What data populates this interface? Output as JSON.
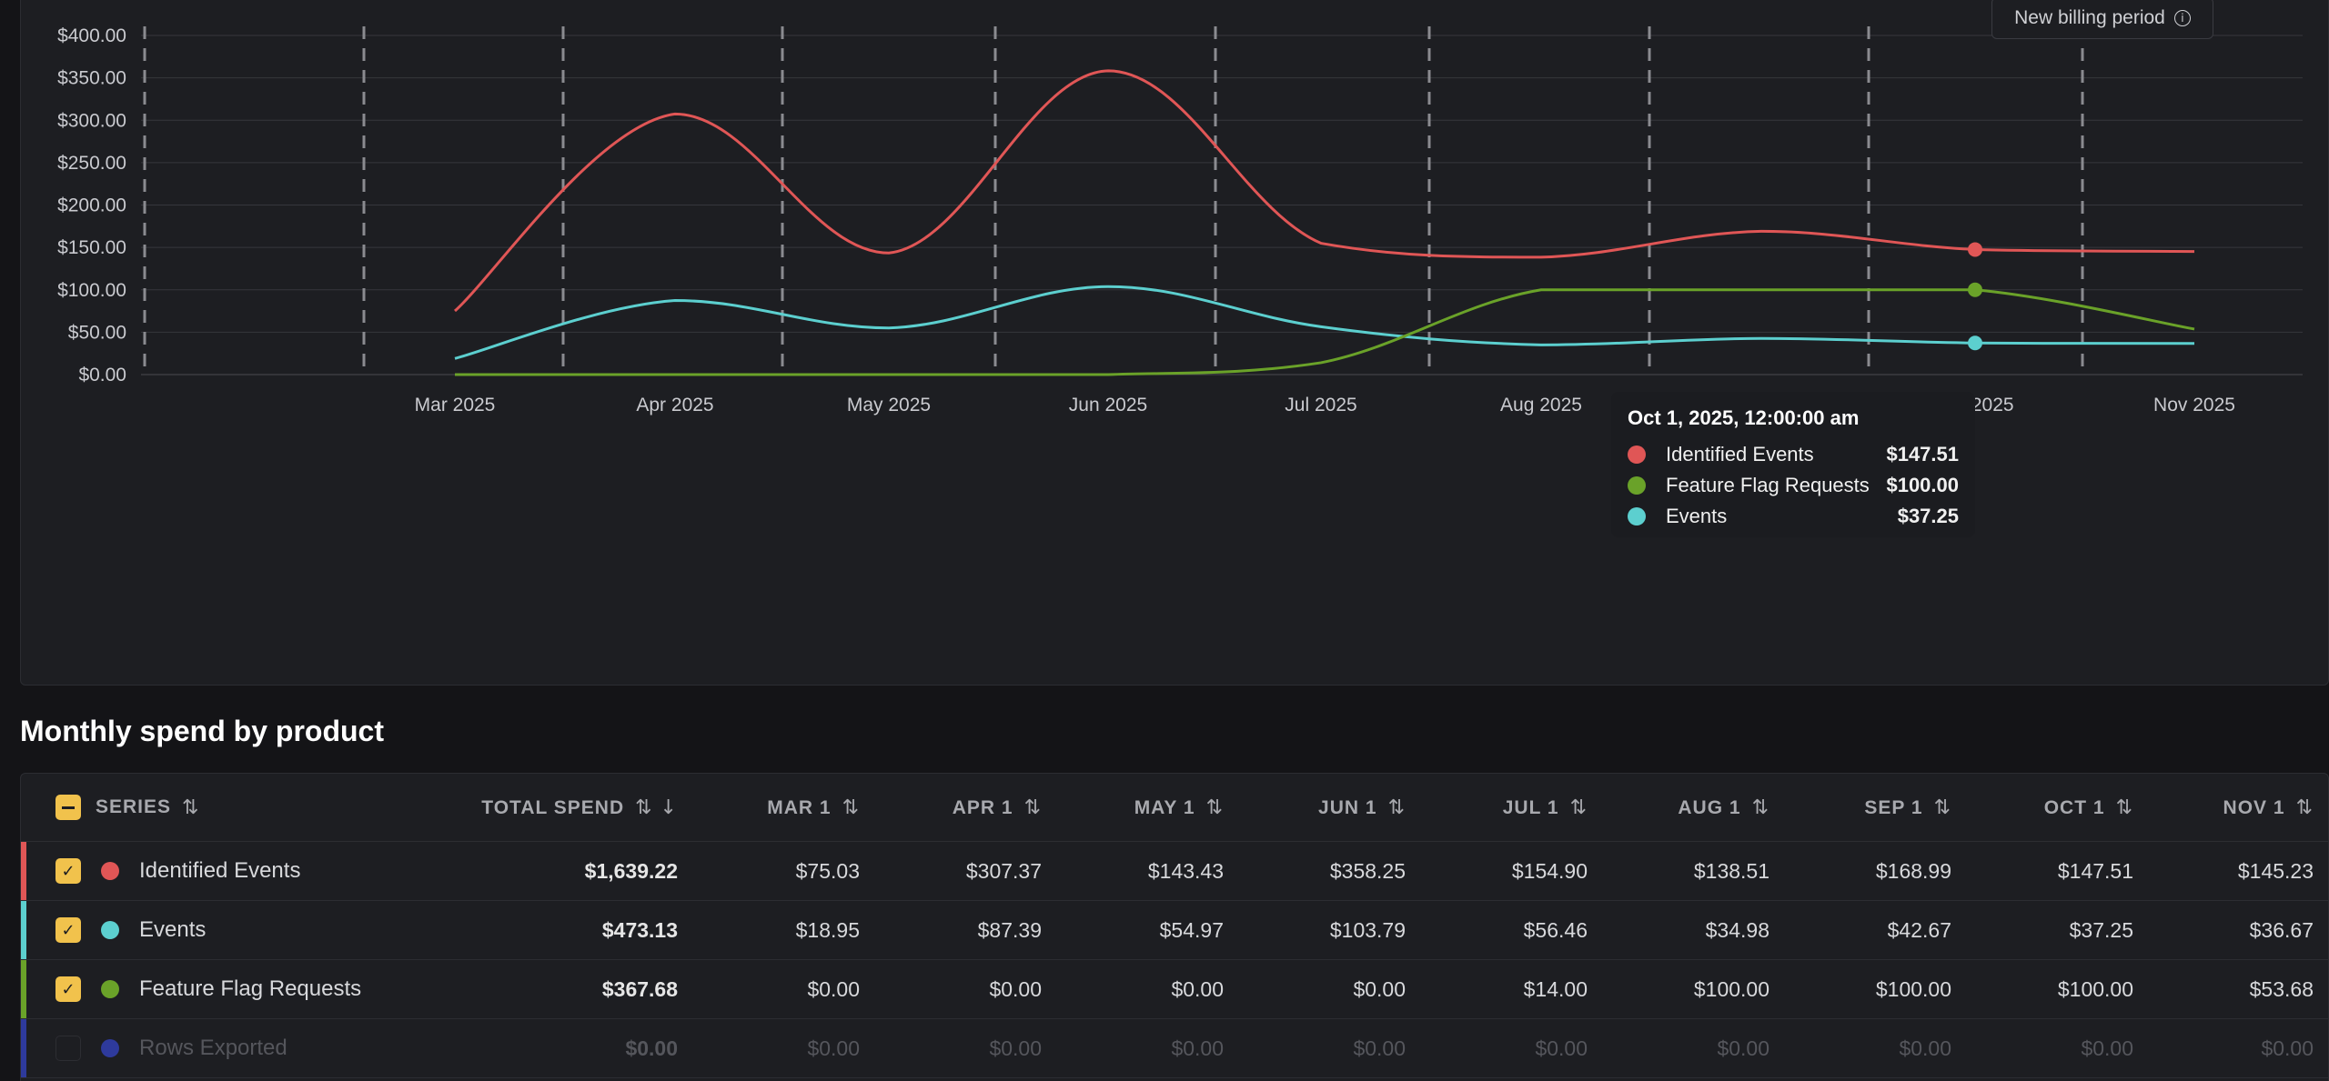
{
  "chart": {
    "badge_label": "New billing period",
    "badge_icon": "info-icon",
    "tooltip": {
      "title": "Oct 1, 2025, 12:00:00 am",
      "rows": [
        {
          "name": "Identified Events",
          "value": "$147.51",
          "color": "#e05656"
        },
        {
          "name": "Feature Flag Requests",
          "value": "$100.00",
          "color": "#6aa229"
        },
        {
          "name": "Events",
          "value": "$37.25",
          "color": "#5ccfcf"
        }
      ]
    }
  },
  "chart_data": {
    "type": "line",
    "title": "",
    "xlabel": "",
    "ylabel": "",
    "ylim": [
      0,
      400
    ],
    "grid": true,
    "x": [
      "Mar 2025",
      "Apr 2025",
      "May 2025",
      "Jun 2025",
      "Jul 2025",
      "Aug 2025",
      "Sep 2025",
      "Oct 2025",
      "Nov 2025"
    ],
    "y_ticks": [
      "$0.00",
      "$50.00",
      "$100.00",
      "$150.00",
      "$200.00",
      "$250.00",
      "$300.00",
      "$350.00",
      "$400.00"
    ],
    "series": [
      {
        "name": "Identified Events",
        "color": "#e05656",
        "values": [
          75.03,
          307.37,
          143.43,
          358.25,
          154.9,
          138.51,
          168.99,
          147.51,
          145.23
        ]
      },
      {
        "name": "Events",
        "color": "#5ccfcf",
        "values": [
          18.95,
          87.39,
          54.97,
          103.79,
          56.46,
          34.98,
          42.67,
          37.25,
          36.67
        ]
      },
      {
        "name": "Feature Flag Requests",
        "color": "#6aa229",
        "values": [
          0,
          0,
          0,
          0,
          14.0,
          100.0,
          100.0,
          100.0,
          53.68
        ]
      }
    ],
    "highlight_index": 7,
    "billing_period_markers": 11
  },
  "section_title": "Monthly spend by product",
  "table": {
    "columns": [
      {
        "label": "SERIES"
      },
      {
        "label": "TOTAL SPEND"
      },
      {
        "label": "MAR 1"
      },
      {
        "label": "APR 1"
      },
      {
        "label": "MAY 1"
      },
      {
        "label": "JUN 1"
      },
      {
        "label": "JUL 1"
      },
      {
        "label": "AUG 1"
      },
      {
        "label": "SEP 1"
      },
      {
        "label": "OCT 1"
      },
      {
        "label": "NOV 1"
      }
    ],
    "rows": [
      {
        "name": "Identified Events",
        "color": "#e05656",
        "checked": true,
        "total": "$1,639.22",
        "values": [
          "$75.03",
          "$307.37",
          "$143.43",
          "$358.25",
          "$154.90",
          "$138.51",
          "$168.99",
          "$147.51",
          "$145.23"
        ]
      },
      {
        "name": "Events",
        "color": "#5ccfcf",
        "checked": true,
        "total": "$473.13",
        "values": [
          "$18.95",
          "$87.39",
          "$54.97",
          "$103.79",
          "$56.46",
          "$34.98",
          "$42.67",
          "$37.25",
          "$36.67"
        ]
      },
      {
        "name": "Feature Flag Requests",
        "color": "#6aa229",
        "checked": true,
        "total": "$367.68",
        "values": [
          "$0.00",
          "$0.00",
          "$0.00",
          "$0.00",
          "$14.00",
          "$100.00",
          "$100.00",
          "$100.00",
          "$53.68"
        ]
      },
      {
        "name": "Rows Exported",
        "color": "#2e3a9c",
        "checked": false,
        "total": "$0.00",
        "values": [
          "$0.00",
          "$0.00",
          "$0.00",
          "$0.00",
          "$0.00",
          "$0.00",
          "$0.00",
          "$0.00",
          "$0.00"
        ]
      }
    ]
  }
}
